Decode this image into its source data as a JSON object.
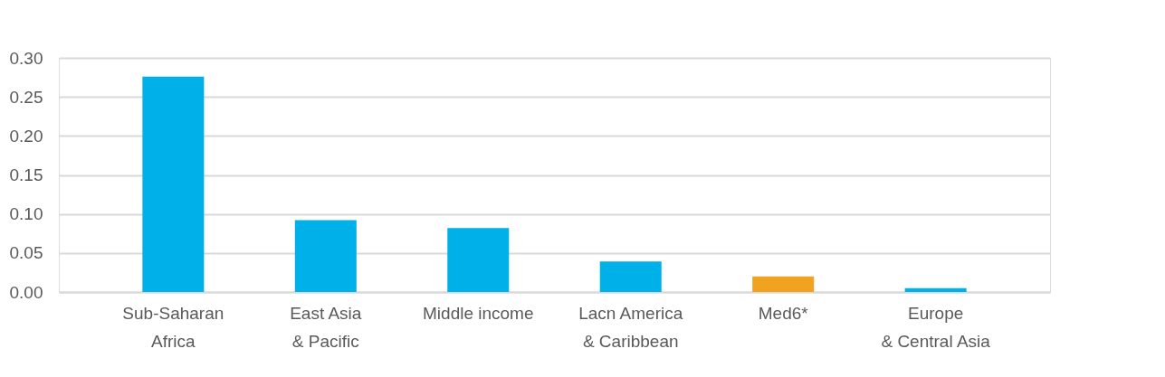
{
  "chart_data": {
    "type": "bar",
    "categories": [
      "Sub-Saharan\nAfrica",
      "East Asia\n& Pacific",
      "Middle income",
      "Lacn America\n& Caribbean",
      "Med6*",
      "Europe\n& Central Asia"
    ],
    "values": [
      0.276,
      0.092,
      0.082,
      0.039,
      0.02,
      0.005
    ],
    "colors": [
      "#00b0e8",
      "#00b0e8",
      "#00b0e8",
      "#00b0e8",
      "#f0a220",
      "#00b0e8"
    ],
    "ylim": [
      0,
      0.3
    ],
    "yticks": [
      {
        "value": 0,
        "label": "0.00"
      },
      {
        "value": 0.05,
        "label": "0.05"
      },
      {
        "value": 0.1,
        "label": "0.10"
      },
      {
        "value": 0.15,
        "label": "0.15"
      },
      {
        "value": 0.2,
        "label": "0.20"
      },
      {
        "value": 0.25,
        "label": "0.25"
      },
      {
        "value": 0.3,
        "label": "0.30"
      }
    ],
    "grid": "y"
  }
}
